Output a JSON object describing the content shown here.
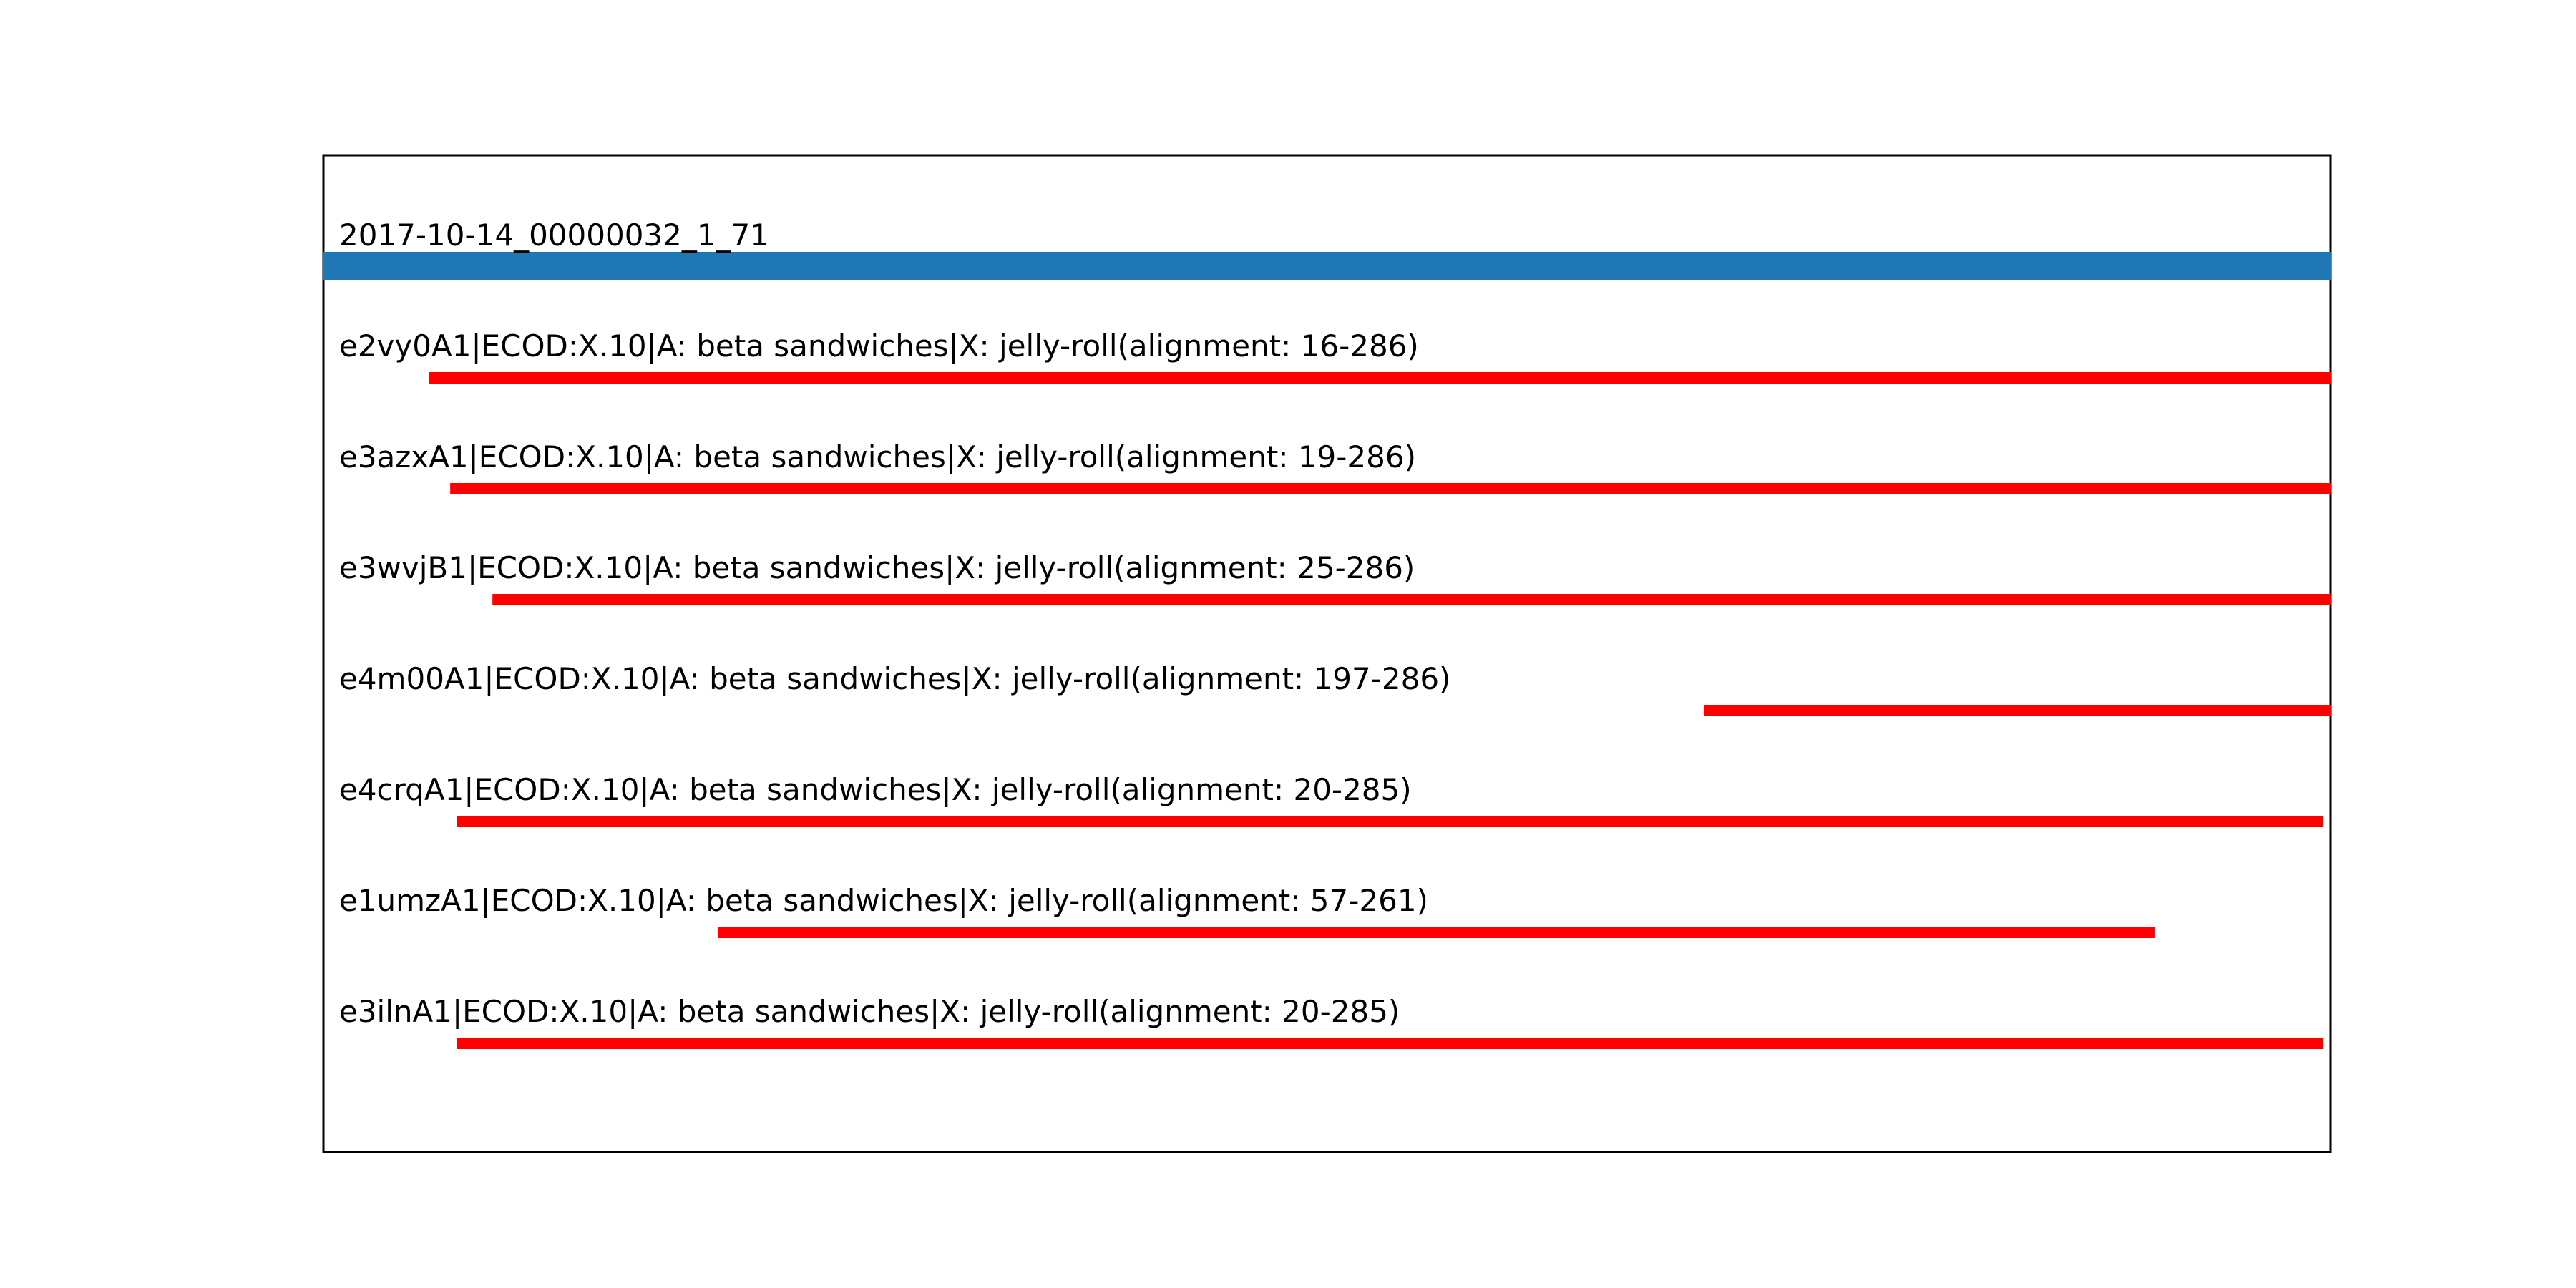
{
  "chart_data": {
    "type": "bar",
    "orientation": "horizontal",
    "title": "",
    "xlabel": "",
    "ylabel": "",
    "grid": false,
    "legend": "none",
    "xlim": [
      1,
      286
    ],
    "query": {
      "label": "2017-10-14_00000032_1_71",
      "start": 1,
      "end": 286,
      "color": "#1f77b4"
    },
    "hits": [
      {
        "label": "e2vy0A1|ECOD:X.10|A: beta sandwiches|X: jelly-roll(alignment: 16-286)",
        "start": 16,
        "end": 286,
        "color": "#ff0000"
      },
      {
        "label": "e3azxA1|ECOD:X.10|A: beta sandwiches|X: jelly-roll(alignment: 19-286)",
        "start": 19,
        "end": 286,
        "color": "#ff0000"
      },
      {
        "label": "e3wvjB1|ECOD:X.10|A: beta sandwiches|X: jelly-roll(alignment: 25-286)",
        "start": 25,
        "end": 286,
        "color": "#ff0000"
      },
      {
        "label": "e4m00A1|ECOD:X.10|A: beta sandwiches|X: jelly-roll(alignment: 197-286)",
        "start": 197,
        "end": 286,
        "color": "#ff0000"
      },
      {
        "label": "e4crqA1|ECOD:X.10|A: beta sandwiches|X: jelly-roll(alignment: 20-285)",
        "start": 20,
        "end": 285,
        "color": "#ff0000"
      },
      {
        "label": "e1umzA1|ECOD:X.10|A: beta sandwiches|X: jelly-roll(alignment: 57-261)",
        "start": 57,
        "end": 261,
        "color": "#ff0000"
      },
      {
        "label": "e3ilnA1|ECOD:X.10|A: beta sandwiches|X: jelly-roll(alignment: 20-285)",
        "start": 20,
        "end": 285,
        "color": "#ff0000"
      }
    ]
  }
}
